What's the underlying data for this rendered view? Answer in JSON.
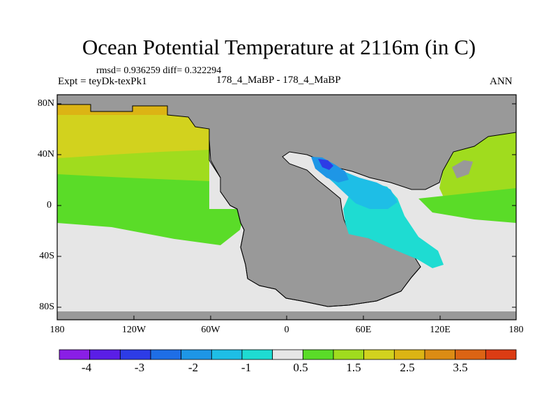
{
  "title": "Ocean Potential Temperature at 2116m (in C)",
  "stats": "rmsd= 0.936259 diff= 0.322294",
  "experiment": "Expt = teyDk-texPk1",
  "comparison": "178_4_MaBP - 178_4_MaBP",
  "season": "ANN",
  "latitude_labels": [
    "80N",
    "40N",
    "0",
    "40S",
    "80S"
  ],
  "longitude_labels": [
    "180",
    "120W",
    "60W",
    "0",
    "60E",
    "120E",
    "180"
  ],
  "colorbar": {
    "colors": [
      "#8a1ee6",
      "#5a1ee6",
      "#2d3ce6",
      "#1e6ee6",
      "#1e96e6",
      "#1ebee6",
      "#1edcd2",
      "#e6e6e6",
      "#5adc28",
      "#a0dc1e",
      "#d2d21e",
      "#dcb414",
      "#dc8c14",
      "#dc6414",
      "#dc3c14"
    ],
    "labels": [
      "-4",
      "-3",
      "-2",
      "-1",
      "0.5",
      "1.5",
      "2.5",
      "3.5"
    ]
  },
  "map_colors": {
    "land": "#999999",
    "coast_outline": "#000000",
    "north_polar": "#dcb414",
    "yellow_band": "#d2d21e",
    "lime_band": "#a0dc1e",
    "green_band": "#5adc28",
    "southern_ocean": "#e6e6e6",
    "cyan_region": "#1edcd2",
    "light_blue_region": "#1ebee6",
    "blue_region": "#1e96e6",
    "dark_blue_region": "#2d3ce6"
  }
}
